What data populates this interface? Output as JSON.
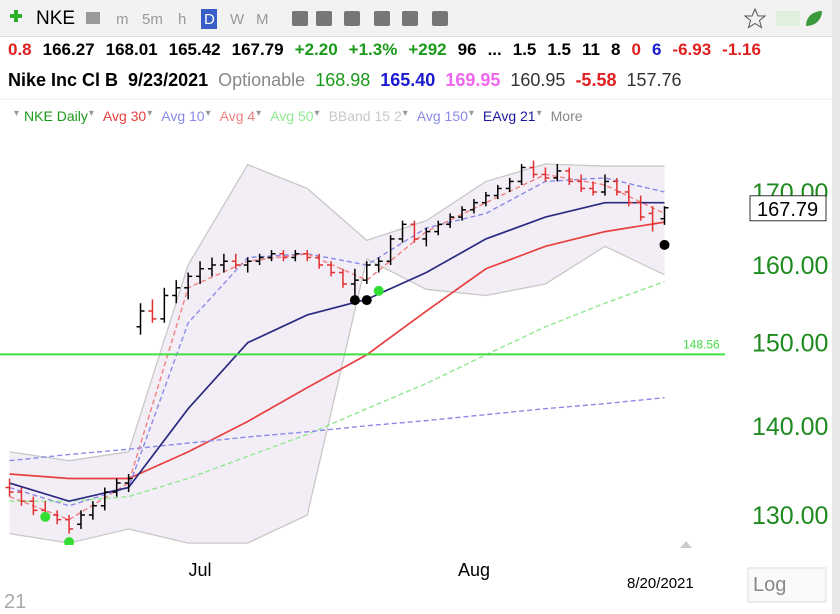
{
  "toolbar": {
    "symbol": "NKE",
    "intervals": [
      "m",
      "5m",
      "h",
      "D",
      "W",
      "M"
    ],
    "active_interval": "D"
  },
  "quote": {
    "row1": [
      {
        "text": "0.8",
        "color": "#e02020"
      },
      {
        "text": "166.27",
        "color": "#000"
      },
      {
        "text": "168.01",
        "color": "#000"
      },
      {
        "text": "165.42",
        "color": "#000"
      },
      {
        "text": "167.79",
        "color": "#000"
      },
      {
        "text": "+2.20",
        "color": "#1a9a1a"
      },
      {
        "text": "+1.3%",
        "color": "#1a9a1a"
      },
      {
        "text": "+292",
        "color": "#1a9a1a"
      },
      {
        "text": "96",
        "color": "#000"
      },
      {
        "text": "...",
        "color": "#000"
      },
      {
        "text": "1.5",
        "color": "#000"
      },
      {
        "text": "1.5",
        "color": "#000"
      },
      {
        "text": "11",
        "color": "#000"
      },
      {
        "text": "8",
        "color": "#000"
      },
      {
        "text": "0",
        "color": "#e02020"
      },
      {
        "text": "6",
        "color": "#1a1ad0"
      },
      {
        "text": "-6.93",
        "color": "#e02020"
      },
      {
        "text": "-1.16",
        "color": "#e02020"
      }
    ],
    "row2": [
      {
        "text": "Nike Inc Cl B",
        "color": "#000"
      },
      {
        "text": "9/23/2021",
        "color": "#000"
      },
      {
        "text": "Optionable",
        "color": "#888"
      },
      {
        "text": "168.98",
        "color": "#1a9a1a"
      },
      {
        "text": "165.40",
        "color": "#1a1ad0"
      },
      {
        "text": "169.95",
        "color": "#ee66ee"
      },
      {
        "text": "160.95",
        "color": "#333"
      },
      {
        "text": "-5.58",
        "color": "#e02020"
      },
      {
        "text": "157.76",
        "color": "#333"
      }
    ]
  },
  "chart_data": {
    "type": "ohlc",
    "log_scale": true,
    "xlim": [
      -0.8,
      60.5
    ],
    "ylim": [
      126.8,
      183.5
    ],
    "yticks": [
      {
        "value": 130,
        "label": "130.00"
      },
      {
        "value": 140,
        "label": "140.00"
      },
      {
        "value": 150,
        "label": "150.00"
      },
      {
        "value": 160,
        "label": "160.00"
      },
      {
        "value": 170,
        "label": "170.00"
      }
    ],
    "xticks": [
      {
        "value": 16,
        "label": "Jul"
      },
      {
        "value": 39,
        "label": "Aug"
      }
    ],
    "price": {
      "name": "NKE Daily",
      "color": "#1a9a1a",
      "up_color": "#000",
      "down_color": "#e03030",
      "open": [
        133,
        132.5,
        131.5,
        130.5,
        130,
        129.5,
        129,
        130,
        131,
        132.5,
        133.5,
        152,
        154,
        153,
        156,
        157,
        158.5,
        159.5,
        160,
        160.5,
        160,
        160.5,
        161,
        161.5,
        161,
        161.5,
        161,
        160,
        159,
        157.5,
        158,
        160,
        160.5,
        163.5,
        165.5,
        163.5,
        164.5,
        165.5,
        166.5,
        167.5,
        168.5,
        169.5,
        170.5,
        171.5,
        173.5,
        172.5,
        172,
        173,
        171.5,
        170.5,
        170,
        171.5,
        170,
        168.5,
        167,
        166.27
      ],
      "high": [
        134,
        133,
        132,
        131.5,
        130.5,
        130,
        130.5,
        131.5,
        133,
        134,
        134.5,
        155,
        155.5,
        157,
        158,
        159,
        160.5,
        161,
        161.5,
        161.5,
        161,
        161.5,
        162,
        162,
        162,
        162,
        161.5,
        160.5,
        159.5,
        159.5,
        160.5,
        161,
        164,
        166,
        166,
        165,
        166,
        167,
        168,
        169,
        170,
        171,
        172,
        174,
        174.5,
        173.5,
        174,
        173.5,
        172.5,
        171.5,
        172.5,
        172,
        171,
        169.5,
        168,
        168.01
      ],
      "low": [
        132,
        131,
        130,
        129.5,
        129,
        128,
        128.5,
        129.5,
        130.5,
        132,
        132.5,
        151,
        152.5,
        152.5,
        155,
        155.5,
        157.5,
        158.5,
        159,
        159.5,
        159,
        160,
        160.5,
        160.5,
        160.5,
        160.5,
        159.5,
        158.5,
        157,
        155,
        157.5,
        159,
        160,
        163,
        163,
        162.5,
        164,
        165,
        166,
        167,
        168,
        169,
        170,
        171,
        172,
        171.5,
        171.5,
        171,
        170,
        169.5,
        169.5,
        169.5,
        168,
        166,
        164.5,
        165.42
      ],
      "close": [
        132.5,
        131.5,
        130.5,
        130,
        129.5,
        128.5,
        130,
        131,
        132.5,
        133.5,
        134,
        154,
        153,
        156,
        157,
        158.5,
        159.5,
        160,
        160.5,
        160,
        160.5,
        161,
        161.5,
        161,
        161.5,
        161,
        160,
        159,
        157.5,
        158,
        160,
        160.5,
        163.5,
        165.5,
        163.5,
        164.5,
        165.5,
        166.5,
        167.5,
        168.5,
        169.5,
        170.5,
        171.5,
        173.5,
        172.5,
        172,
        173,
        171.5,
        170.5,
        170,
        171.5,
        170,
        168.5,
        166.5,
        165.59,
        167.79
      ]
    },
    "series": [
      {
        "name": "Avg 30",
        "color": "#e84040",
        "dash": false,
        "x": [
          0,
          5,
          10,
          15,
          20,
          25,
          30,
          35,
          40,
          45,
          50,
          55
        ],
        "values": [
          134.5,
          134,
          134,
          137,
          140.5,
          144.5,
          148.5,
          154,
          159.5,
          162.5,
          164.5,
          165.8
        ]
      },
      {
        "name": "Avg 10",
        "color": "#8a8ae8",
        "dash": true,
        "x": [
          0,
          5,
          10,
          15,
          20,
          25,
          30,
          35,
          40,
          45,
          50,
          55
        ],
        "values": [
          133,
          131,
          133,
          152.5,
          161,
          161.5,
          160,
          165,
          167,
          171.5,
          172,
          170
        ]
      },
      {
        "name": "Avg 4",
        "color": "#f08080",
        "dash": true,
        "x": [
          0,
          5,
          10,
          15,
          20,
          25,
          30,
          35,
          40,
          45,
          50,
          55
        ],
        "values": [
          132,
          129.5,
          133.5,
          157,
          160.5,
          161.5,
          158,
          164.5,
          168.5,
          172.5,
          171,
          167
        ]
      },
      {
        "name": "Avg 50",
        "color": "#90e890",
        "dash": true,
        "x": [
          0,
          5,
          10,
          15,
          20,
          25,
          30,
          35,
          40,
          45,
          50,
          55
        ],
        "values": [
          131.5,
          131.5,
          132,
          134,
          136.5,
          139,
          142,
          145,
          148.5,
          152,
          155,
          157.8
        ]
      },
      {
        "name": "Avg 150",
        "color": "#8a8ae8",
        "dash": true,
        "x": [
          0,
          5,
          10,
          15,
          20,
          25,
          30,
          35,
          40,
          45,
          50,
          55
        ],
        "values": [
          136,
          136.7,
          137.3,
          138,
          138.7,
          139.3,
          140,
          140.6,
          141.3,
          142,
          142.6,
          143.3
        ]
      },
      {
        "name": "EAvg 21",
        "color": "#2a2a80",
        "dash": false,
        "x": [
          0,
          5,
          10,
          15,
          20,
          25,
          30,
          35,
          40,
          45,
          50,
          55
        ],
        "values": [
          133.5,
          131.5,
          133,
          142,
          150,
          153.5,
          155.5,
          159,
          163.5,
          166.5,
          168.5,
          168.5
        ]
      }
    ],
    "band": {
      "name": "BBand 15 2",
      "color": "#c8c8c8",
      "fill": "#f3eef6",
      "x": [
        0,
        5,
        10,
        15,
        20,
        25,
        30,
        35,
        40,
        45,
        50,
        55
      ],
      "upper": [
        137,
        136,
        137,
        160,
        173.9,
        170.5,
        163.3,
        166,
        171.5,
        174,
        173.7,
        173.7
      ],
      "lower": [
        128,
        127,
        128.5,
        127,
        127,
        130,
        160.8,
        156.8,
        156,
        157.5,
        162.5,
        158.7
      ]
    },
    "hline": {
      "value": 148.56,
      "color": "#44dd44"
    },
    "signals": [
      {
        "x": 3,
        "value": 129.8,
        "color": "#33dd33"
      },
      {
        "x": 5,
        "value": 127.1,
        "color": "#33dd33"
      },
      {
        "x": 31,
        "value": 156.6,
        "color": "#33dd33"
      },
      {
        "x": 29,
        "value": 155.4,
        "color": "#000"
      },
      {
        "x": 30,
        "value": 155.4,
        "color": "#000"
      },
      {
        "x": 55,
        "value": 162.7,
        "color": "#000"
      }
    ],
    "more": "More",
    "date": "8/20/2021",
    "scale_button": "Log",
    "corner": "21"
  }
}
